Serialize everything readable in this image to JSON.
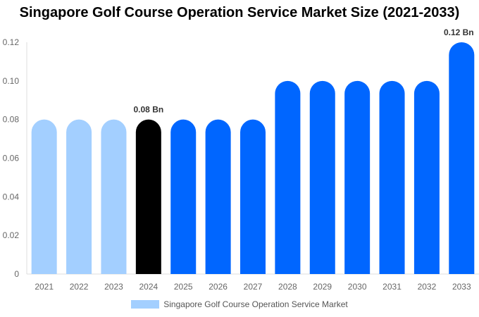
{
  "chart_data": {
    "type": "bar",
    "title": "Singapore Golf Course Operation Service Market Size (2021-2033)",
    "categories": [
      "2021",
      "2022",
      "2023",
      "2024",
      "2025",
      "2026",
      "2027",
      "2028",
      "2029",
      "2030",
      "2031",
      "2032",
      "2033"
    ],
    "series": [
      {
        "name": "Singapore Golf Course Operation Service Market",
        "values": [
          0.08,
          0.08,
          0.08,
          0.08,
          0.08,
          0.08,
          0.08,
          0.1,
          0.1,
          0.1,
          0.1,
          0.1,
          0.12
        ]
      }
    ],
    "bar_colors": [
      "#a3cfff",
      "#a3cfff",
      "#a3cfff",
      "#000000",
      "#0066ff",
      "#0066ff",
      "#0066ff",
      "#0066ff",
      "#0066ff",
      "#0066ff",
      "#0066ff",
      "#0066ff",
      "#0066ff"
    ],
    "data_labels": {
      "2024": "0.08 Bn",
      "2033": "0.12 Bn"
    },
    "yticks": [
      "0",
      "0.02",
      "0.04",
      "0.06",
      "0.08",
      "0.10",
      "0.12"
    ],
    "ylim": [
      0,
      0.12
    ],
    "xlabel": "",
    "ylabel": "",
    "grid": false,
    "legend_position": "bottom",
    "legend_color": "#a3cfff"
  }
}
